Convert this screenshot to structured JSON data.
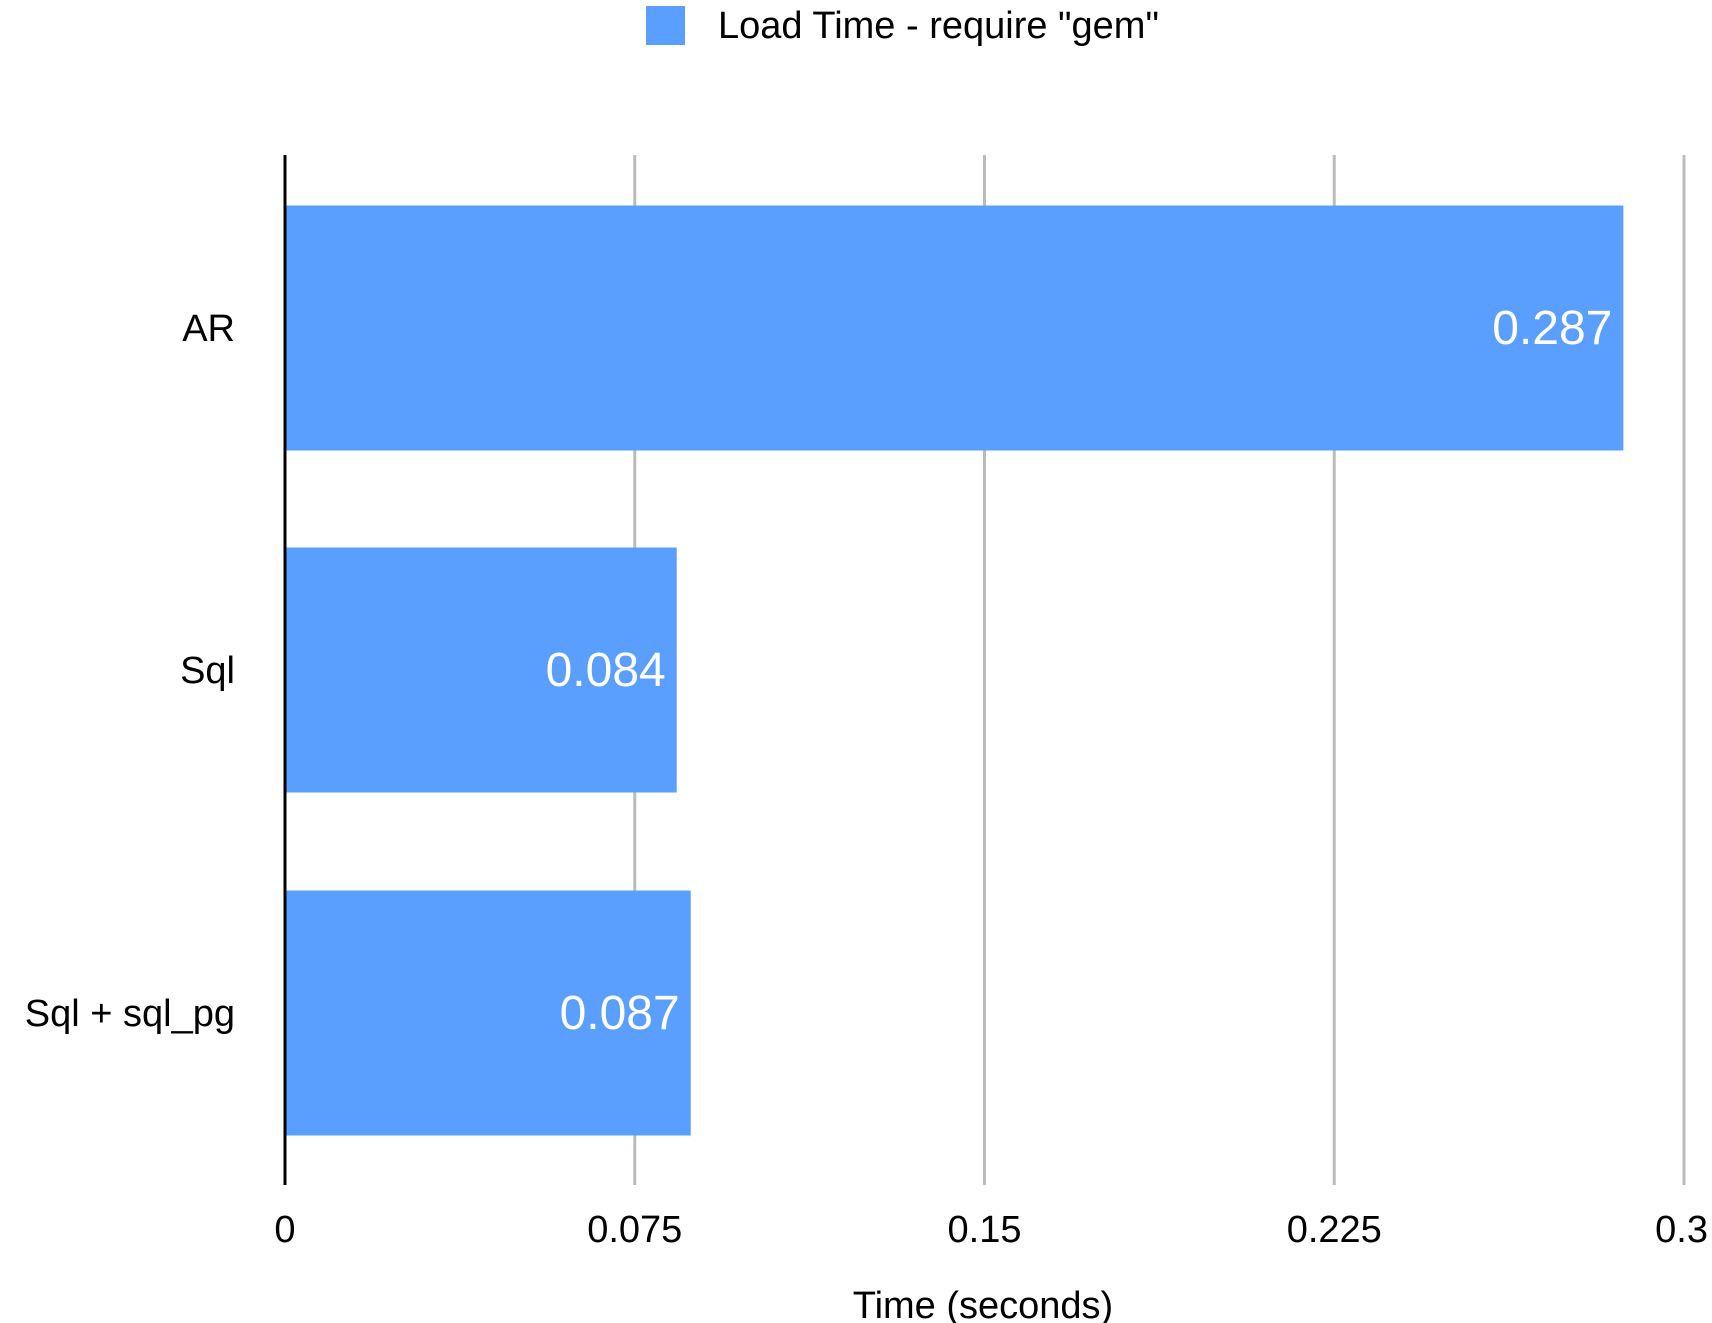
{
  "chart_data": {
    "type": "bar",
    "orientation": "horizontal",
    "categories": [
      "AR",
      "Sql",
      "Sql + sql_pg"
    ],
    "series": [
      {
        "name": "Load Time - require \"gem\"",
        "values": [
          0.287,
          0.084,
          0.087
        ],
        "data_labels": [
          "0.287",
          "0.084",
          "0.087"
        ],
        "color": "#5a9ffd"
      }
    ],
    "xlabel": "Time (seconds)",
    "ylabel": "",
    "xlim": [
      0,
      0.3
    ],
    "x_ticks": [
      0,
      0.075,
      0.15,
      0.225,
      0.3
    ],
    "x_tick_labels": [
      "0",
      "0.075",
      "0.15",
      "0.225",
      "0.3"
    ],
    "grid": "vertical",
    "legend_position": "top-center"
  },
  "colors": {
    "bar": "#5a9ffd",
    "grid": "#bbbbbb",
    "axis": "#000000",
    "data_label": "#ffffff",
    "text": "#000000"
  }
}
